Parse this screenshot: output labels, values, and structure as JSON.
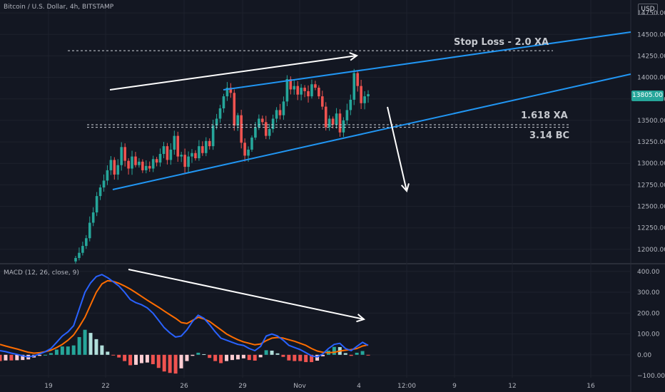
{
  "header": {
    "title": "Bitcoin / U.S. Dollar, 4h, BITSTAMP",
    "currency": "USD",
    "last_price": "13805.00"
  },
  "macd": {
    "title": "MACD (12, 26, close, 9)"
  },
  "annotations": {
    "stop_loss": "Stop Loss - 2.0 XA",
    "fib_xa": "1.618 XA",
    "fib_bc": "3.14 BC"
  },
  "colors": {
    "up": "#26a69a",
    "down": "#ef5350",
    "macd": "#2962ff",
    "signal": "#ff6d00",
    "trend": "#2196f3"
  },
  "chart_data": [
    {
      "type": "candlestick",
      "title": "Bitcoin / U.S. Dollar, 4h, BITSTAMP",
      "x_ticks": [
        "19",
        "22",
        "26",
        "29",
        "Nov",
        "4",
        "12:00",
        "9",
        "12",
        "16"
      ],
      "y_ticks": [
        "12000.00",
        "12250.00",
        "12500.00",
        "12750.00",
        "13000.00",
        "13250.00",
        "13500.00",
        "13750.00",
        "14000.00",
        "14250.00",
        "14500.00",
        "14750.00"
      ],
      "ylim": [
        11850,
        14900
      ],
      "last_price": 13805.0,
      "levels": [
        {
          "label": "Stop Loss - 2.0 XA",
          "value": 14310
        },
        {
          "label": "1.618 XA",
          "value": 13450
        },
        {
          "label": "3.14 BC",
          "value": 13420
        }
      ],
      "closes": [
        11900,
        11960,
        12040,
        12130,
        12310,
        12430,
        12620,
        12720,
        12800,
        12920,
        13040,
        12870,
        12980,
        13190,
        13030,
        12940,
        13080,
        12980,
        13020,
        12920,
        12970,
        12940,
        13050,
        13010,
        13110,
        13200,
        13040,
        13160,
        13320,
        13080,
        13100,
        12960,
        13080,
        13120,
        13060,
        13200,
        13120,
        13260,
        13200,
        13440,
        13520,
        13640,
        13780,
        13880,
        13820,
        13440,
        13560,
        13240,
        13090,
        13160,
        13300,
        13420,
        13520,
        13480,
        13320,
        13400,
        13520,
        13620,
        13560,
        13720,
        13980,
        13860,
        13900,
        13800,
        13880,
        13840,
        13780,
        13920,
        13880,
        13780,
        13660,
        13420,
        13520,
        13450,
        13580,
        13360,
        13500,
        13620,
        13740,
        14050,
        13900,
        13700,
        13780,
        13805
      ]
    },
    {
      "type": "line",
      "title": "MACD (12, 26, close, 9)",
      "y_ticks": [
        "400.00",
        "300.00",
        "200.00",
        "100.00",
        "0.00",
        "−100.00"
      ],
      "ylim": [
        -110,
        430
      ],
      "series": [
        {
          "values": [
            20,
            15,
            8,
            2,
            -5,
            -10,
            -5,
            5,
            15,
            30,
            60,
            90,
            110,
            140,
            220,
            300,
            345,
            375,
            385,
            370,
            350,
            330,
            300,
            265,
            250,
            240,
            225,
            200,
            165,
            130,
            105,
            85,
            90,
            120,
            160,
            190,
            175,
            145,
            110,
            80,
            70,
            60,
            50,
            45,
            30,
            20,
            40,
            90,
            100,
            90,
            70,
            45,
            35,
            25,
            10,
            -5,
            -10,
            5,
            30,
            50,
            55,
            30,
            20,
            40,
            60,
            45
          ]
        },
        {
          "values": [
            50,
            42,
            35,
            28,
            20,
            12,
            8,
            10,
            15,
            22,
            35,
            50,
            70,
            95,
            135,
            180,
            240,
            300,
            340,
            355,
            352,
            343,
            330,
            315,
            298,
            280,
            262,
            245,
            228,
            210,
            192,
            175,
            155,
            150,
            165,
            180,
            172,
            160,
            140,
            120,
            100,
            85,
            72,
            62,
            55,
            48,
            52,
            68,
            80,
            83,
            80,
            72,
            65,
            55,
            45,
            30,
            18,
            12,
            10,
            12,
            18,
            22,
            25,
            30,
            42,
            48
          ]
        }
      ]
    }
  ]
}
